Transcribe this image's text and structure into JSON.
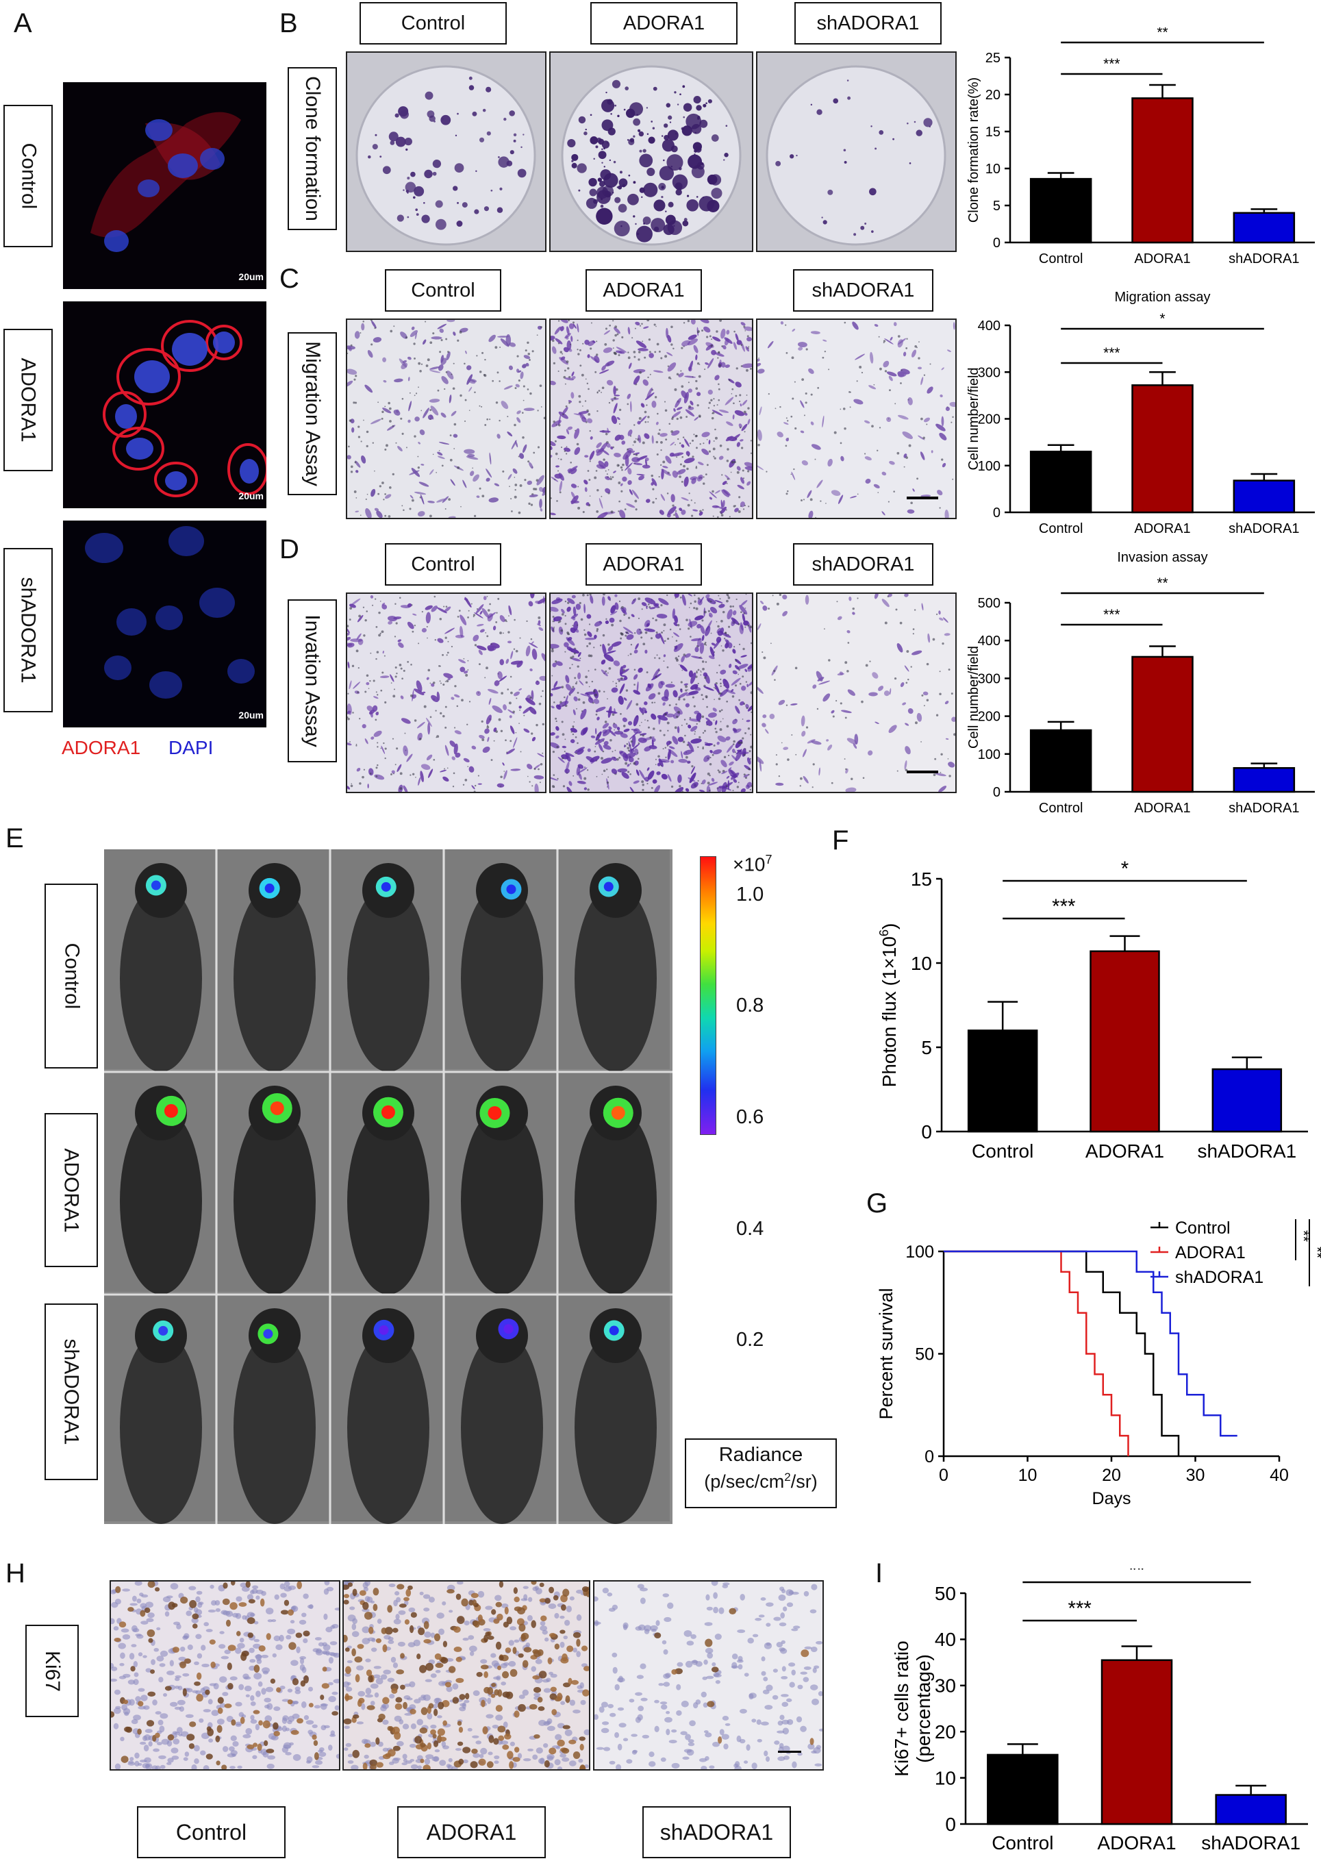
{
  "panel_letters": {
    "a": "A",
    "b": "B",
    "c": "C",
    "d": "D",
    "e": "E",
    "f": "F",
    "g": "G",
    "h": "H",
    "i": "I"
  },
  "groups": {
    "control": "Control",
    "adora1": "ADORA1",
    "sh": "shADORA1"
  },
  "panel_a": {
    "scale": "20um",
    "legend_red": "ADORA1",
    "legend_blue": "DAPI"
  },
  "side_labels": {
    "clone": "Clone formation",
    "migration": "Migration Assay",
    "invasion": "Invation Assay",
    "ki67": "Ki67"
  },
  "colors": {
    "control": "#000000",
    "adora1": "#a00000",
    "sh": "#0000d8",
    "adora1_label": "#e02020",
    "dapi_label": "#2020d0"
  },
  "colorbar": {
    "multiplier": "×10",
    "exponent": "7",
    "ticks": [
      "1.0",
      "0.8",
      "0.6",
      "0.4",
      "0.2"
    ],
    "title": "Radiance",
    "unit_prefix": "(p/sec/cm",
    "unit_sup": "2",
    "unit_suffix": "/sr)"
  },
  "chart_data": [
    {
      "id": "b",
      "type": "bar",
      "title": "",
      "categories": [
        "Control",
        "ADORA1",
        "shADORA1"
      ],
      "values": [
        8.6,
        19.5,
        4.0
      ],
      "errors": [
        0.8,
        1.8,
        0.5
      ],
      "ylabel": "Clone formation rate(%)",
      "ylim": [
        0,
        25
      ],
      "yticks": [
        "0",
        "5",
        "10",
        "15",
        "20",
        "25"
      ],
      "significance": [
        "***",
        "**"
      ]
    },
    {
      "id": "c",
      "type": "bar",
      "title": "Migration assay",
      "categories": [
        "Control",
        "ADORA1",
        "shADORA1"
      ],
      "values": [
        130,
        272,
        68
      ],
      "errors": [
        14,
        28,
        14
      ],
      "ylabel": "Cell number/field",
      "ylim": [
        0,
        400
      ],
      "yticks": [
        "0",
        "100",
        "200",
        "300",
        "400"
      ],
      "significance": [
        "***",
        "*"
      ]
    },
    {
      "id": "d",
      "type": "bar",
      "title": "Invasion assay",
      "categories": [
        "Control",
        "ADORA1",
        "shADORA1"
      ],
      "values": [
        163,
        357,
        63
      ],
      "errors": [
        22,
        28,
        12
      ],
      "ylabel": "Cell number/field",
      "ylim": [
        0,
        500
      ],
      "yticks": [
        "0",
        "100",
        "200",
        "300",
        "400",
        "500"
      ],
      "significance": [
        "***",
        "**"
      ]
    },
    {
      "id": "f",
      "type": "bar",
      "title": "",
      "categories": [
        "Control",
        "ADORA1",
        "shADORA1"
      ],
      "values": [
        6.0,
        10.7,
        3.7
      ],
      "errors": [
        1.7,
        0.9,
        0.7
      ],
      "ylabel_prefix": "Photon flux (1×10",
      "ylabel_sup": "6",
      "ylabel_suffix": ")",
      "ylim": [
        0,
        15
      ],
      "yticks": [
        "0",
        "5",
        "10",
        "15"
      ],
      "significance": [
        "***",
        "*"
      ]
    },
    {
      "id": "g",
      "type": "line",
      "title": "",
      "xlabel": "Days",
      "ylabel": "Percent survival",
      "xlim": [
        0,
        40
      ],
      "ylim": [
        0,
        100
      ],
      "xticks": [
        "0",
        "10",
        "20",
        "30",
        "40"
      ],
      "yticks": [
        "0",
        "50",
        "100"
      ],
      "series": [
        {
          "name": "Control",
          "x": [
            0,
            17,
            17,
            19,
            19,
            21,
            21,
            23,
            23,
            24,
            24,
            25,
            25,
            26,
            26,
            28,
            28
          ],
          "y": [
            100,
            100,
            90,
            90,
            80,
            80,
            70,
            70,
            60,
            60,
            50,
            50,
            30,
            30,
            10,
            10,
            0
          ]
        },
        {
          "name": "ADORA1",
          "x": [
            0,
            14,
            14,
            15,
            15,
            16,
            16,
            17,
            17,
            18,
            18,
            19,
            19,
            20,
            20,
            21,
            21,
            22,
            22
          ],
          "y": [
            100,
            100,
            90,
            90,
            80,
            80,
            70,
            70,
            50,
            50,
            40,
            40,
            30,
            30,
            20,
            20,
            10,
            10,
            0
          ]
        },
        {
          "name": "shADORA1",
          "x": [
            0,
            23,
            23,
            25,
            25,
            26,
            26,
            27,
            27,
            28,
            28,
            29,
            29,
            31,
            31,
            33,
            33,
            35
          ],
          "y": [
            100,
            100,
            90,
            90,
            80,
            80,
            70,
            70,
            60,
            60,
            40,
            40,
            30,
            30,
            20,
            20,
            10,
            10
          ]
        }
      ],
      "significance": [
        "**",
        "**"
      ]
    },
    {
      "id": "i",
      "type": "bar",
      "title": "",
      "categories": [
        "Control",
        "ADORA1",
        "shADORA1"
      ],
      "values": [
        15.0,
        35.5,
        6.3
      ],
      "errors": [
        2.3,
        3.0,
        2.0
      ],
      "ylabel": "Ki67+ cells ratio (percentage)",
      "ylim": [
        0,
        50
      ],
      "yticks": [
        "0",
        "10",
        "20",
        "30",
        "40",
        "50"
      ],
      "significance": [
        "***",
        "**"
      ]
    }
  ]
}
